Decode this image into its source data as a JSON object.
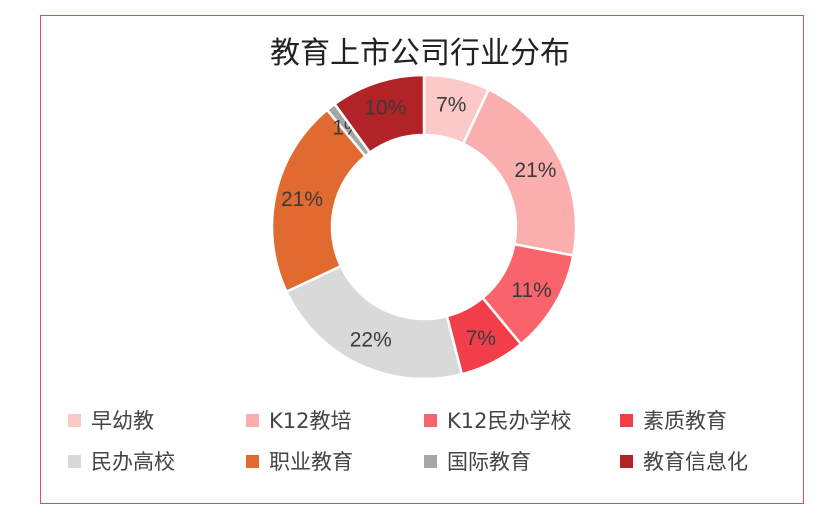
{
  "chart_data": {
    "type": "pie",
    "title": "教育上市公司行业分布",
    "donut": true,
    "legend_position": "bottom",
    "slices": [
      {
        "name": "早幼教",
        "value": 7,
        "label": "7%",
        "color": "#fcc9c9"
      },
      {
        "name": "K12教培",
        "value": 21,
        "label": "21%",
        "color": "#fbaeae"
      },
      {
        "name": "K12民办学校",
        "value": 11,
        "label": "11%",
        "color": "#f8636c"
      },
      {
        "name": "素质教育",
        "value": 7,
        "label": "7%",
        "color": "#f23e4b"
      },
      {
        "name": "民办高校",
        "value": 22,
        "label": "22%",
        "color": "#d9d9d9"
      },
      {
        "name": "职业教育",
        "value": 21,
        "label": "21%",
        "color": "#e06a2f"
      },
      {
        "name": "国际教育",
        "value": 1,
        "label": "1%",
        "color": "#a6a6a6"
      },
      {
        "name": "教育信息化",
        "value": 10,
        "label": "10%",
        "color": "#b22328"
      }
    ]
  }
}
